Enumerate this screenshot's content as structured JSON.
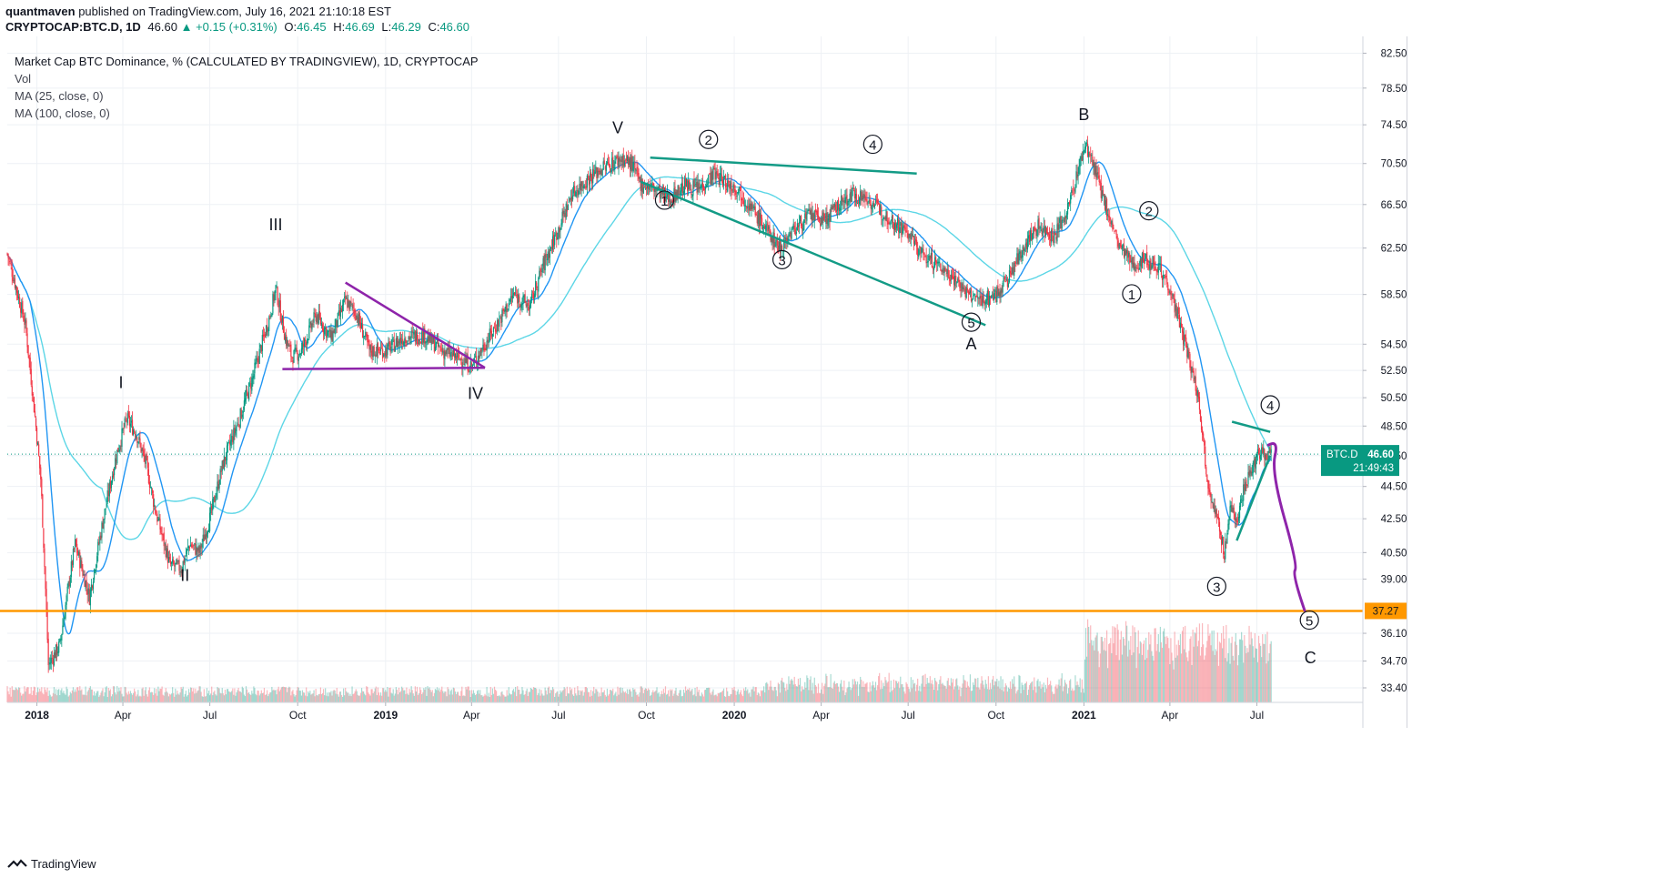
{
  "header": {
    "author": "quantmaven",
    "published_text": "published on TradingView.com, July 16, 2021 21:10:18 EST",
    "symbol": "CRYPTOCAP:BTC.D, 1D",
    "last": "46.60",
    "change": "+0.15 (+0.31%)",
    "open_label": "O:",
    "open": "46.45",
    "high_label": "H:",
    "high": "46.69",
    "low_label": "L:",
    "low": "46.29",
    "close_label": "C:",
    "close": "46.60"
  },
  "legend": {
    "title": "Market Cap BTC Dominance, % (CALCULATED BY TRADINGVIEW), 1D, CRYPTOCAP",
    "vol": "Vol",
    "ma25": "MA (25, close, 0)",
    "ma100": "MA (100, close, 0)"
  },
  "footer": {
    "brand": "TradingView"
  },
  "colors": {
    "up": "#089981",
    "down": "#f23645",
    "ma25": "#2196f3",
    "ma100": "#5cd6e6",
    "support": "#ff9800",
    "purple": "#8e24aa",
    "channel": "#139b86",
    "grid": "#eef1f5"
  },
  "chart_data": {
    "type": "line",
    "y_scale": "log",
    "ylim": [
      32.8,
      84.5
    ],
    "xlim": [
      "2017-12-01",
      "2021-10-20"
    ],
    "y_ticks": [
      "82.50",
      "78.50",
      "74.50",
      "70.50",
      "66.50",
      "62.50",
      "58.50",
      "54.50",
      "52.50",
      "50.50",
      "48.50",
      "46.50",
      "44.50",
      "42.50",
      "40.50",
      "39.00",
      "37.27",
      "36.10",
      "34.70",
      "33.40"
    ],
    "x_ticks": [
      {
        "label": "2018",
        "date": "2018-01-01",
        "bold": true
      },
      {
        "label": "Apr",
        "date": "2018-04-01"
      },
      {
        "label": "Jul",
        "date": "2018-07-01"
      },
      {
        "label": "Oct",
        "date": "2018-10-01"
      },
      {
        "label": "2019",
        "date": "2019-01-01",
        "bold": true
      },
      {
        "label": "Apr",
        "date": "2019-04-01"
      },
      {
        "label": "Jul",
        "date": "2019-07-01"
      },
      {
        "label": "Oct",
        "date": "2019-10-01"
      },
      {
        "label": "2020",
        "date": "2020-01-01",
        "bold": true
      },
      {
        "label": "Apr",
        "date": "2020-04-01"
      },
      {
        "label": "Jul",
        "date": "2020-07-01"
      },
      {
        "label": "Oct",
        "date": "2020-10-01"
      },
      {
        "label": "2021",
        "date": "2021-01-01",
        "bold": true
      },
      {
        "label": "Apr",
        "date": "2021-04-01"
      },
      {
        "label": "Jul",
        "date": "2021-07-01"
      }
    ],
    "price_path": [
      [
        "2017-12-01",
        62.0
      ],
      [
        "2017-12-20",
        56.0
      ],
      [
        "2018-01-05",
        45.0
      ],
      [
        "2018-01-13",
        34.5
      ],
      [
        "2018-01-25",
        35.5
      ],
      [
        "2018-02-10",
        41.0
      ],
      [
        "2018-02-25",
        38.0
      ],
      [
        "2018-03-10",
        42.0
      ],
      [
        "2018-03-25",
        46.5
      ],
      [
        "2018-04-05",
        49.0
      ],
      [
        "2018-04-15",
        48.0
      ],
      [
        "2018-04-25",
        46.0
      ],
      [
        "2018-05-05",
        43.0
      ],
      [
        "2018-05-20",
        39.8
      ],
      [
        "2018-06-01",
        39.6
      ],
      [
        "2018-06-10",
        41.0
      ],
      [
        "2018-06-20",
        40.5
      ],
      [
        "2018-07-01",
        42.5
      ],
      [
        "2018-07-15",
        46.0
      ],
      [
        "2018-08-01",
        49.0
      ],
      [
        "2018-08-15",
        52.0
      ],
      [
        "2018-09-01",
        56.5
      ],
      [
        "2018-09-08",
        59.0
      ],
      [
        "2018-09-18",
        55.0
      ],
      [
        "2018-09-25",
        53.5
      ],
      [
        "2018-10-05",
        54.0
      ],
      [
        "2018-10-20",
        56.8
      ],
      [
        "2018-11-05",
        55.0
      ],
      [
        "2018-11-20",
        58.0
      ],
      [
        "2018-12-01",
        57.0
      ],
      [
        "2018-12-15",
        54.0
      ],
      [
        "2019-01-01",
        54.0
      ],
      [
        "2019-01-20",
        55.0
      ],
      [
        "2019-02-10",
        55.2
      ],
      [
        "2019-03-01",
        54.0
      ],
      [
        "2019-03-25",
        53.2
      ],
      [
        "2019-04-01",
        52.8
      ],
      [
        "2019-04-15",
        54.5
      ],
      [
        "2019-05-01",
        56.5
      ],
      [
        "2019-05-15",
        58.5
      ],
      [
        "2019-06-01",
        57.5
      ],
      [
        "2019-06-15",
        61.0
      ],
      [
        "2019-06-30",
        64.0
      ],
      [
        "2019-07-15",
        67.5
      ],
      [
        "2019-08-01",
        69.0
      ],
      [
        "2019-08-15",
        70.0
      ],
      [
        "2019-09-05",
        71.0
      ],
      [
        "2019-09-15",
        70.5
      ],
      [
        "2019-09-25",
        68.5
      ],
      [
        "2019-10-10",
        68.0
      ],
      [
        "2019-10-25",
        67.0
      ],
      [
        "2019-11-10",
        68.3
      ],
      [
        "2019-11-25",
        68.0
      ],
      [
        "2019-12-10",
        69.5
      ],
      [
        "2019-12-25",
        68.5
      ],
      [
        "2020-01-05",
        68.0
      ],
      [
        "2020-01-20",
        66.0
      ],
      [
        "2020-02-01",
        64.5
      ],
      [
        "2020-02-18",
        62.5
      ],
      [
        "2020-03-01",
        64.0
      ],
      [
        "2020-03-20",
        65.5
      ],
      [
        "2020-04-05",
        65.0
      ],
      [
        "2020-04-20",
        66.5
      ],
      [
        "2020-05-05",
        67.5
      ],
      [
        "2020-05-20",
        67.0
      ],
      [
        "2020-06-01",
        66.0
      ],
      [
        "2020-06-15",
        65.0
      ],
      [
        "2020-07-01",
        63.8
      ],
      [
        "2020-07-15",
        62.0
      ],
      [
        "2020-08-01",
        61.0
      ],
      [
        "2020-08-20",
        59.8
      ],
      [
        "2020-09-01",
        58.5
      ],
      [
        "2020-09-15",
        58.0
      ],
      [
        "2020-10-01",
        58.5
      ],
      [
        "2020-10-15",
        60.0
      ],
      [
        "2020-11-01",
        63.0
      ],
      [
        "2020-11-15",
        64.5
      ],
      [
        "2020-12-01",
        63.5
      ],
      [
        "2020-12-15",
        66.0
      ],
      [
        "2020-12-28",
        70.5
      ],
      [
        "2021-01-03",
        72.5
      ],
      [
        "2021-01-15",
        69.0
      ],
      [
        "2021-01-25",
        66.0
      ],
      [
        "2021-02-05",
        63.0
      ],
      [
        "2021-02-20",
        61.0
      ],
      [
        "2021-03-05",
        61.5
      ],
      [
        "2021-03-20",
        61.0
      ],
      [
        "2021-04-01",
        59.0
      ],
      [
        "2021-04-15",
        55.0
      ],
      [
        "2021-05-01",
        50.5
      ],
      [
        "2021-05-10",
        45.0
      ],
      [
        "2021-05-20",
        42.5
      ],
      [
        "2021-05-28",
        40.5
      ],
      [
        "2021-06-03",
        43.0
      ],
      [
        "2021-06-10",
        42.5
      ],
      [
        "2021-06-18",
        44.5
      ],
      [
        "2021-06-28",
        46.0
      ],
      [
        "2021-07-05",
        46.8
      ],
      [
        "2021-07-16",
        46.6
      ]
    ],
    "last_price": {
      "label": "BTC.D",
      "value": "46.60",
      "countdown": "21:49:43",
      "price": 46.6
    },
    "support": {
      "value": 37.27,
      "label": "37.27"
    },
    "annotations": {
      "wave_labels": [
        {
          "text": "I",
          "date": "2018-03-30",
          "price": 51.2
        },
        {
          "text": "II",
          "date": "2018-06-05",
          "price": 38.9
        },
        {
          "text": "III",
          "date": "2018-09-08",
          "price": 64.1
        },
        {
          "text": "IV",
          "date": "2019-04-05",
          "price": 50.4
        },
        {
          "text": "V",
          "date": "2019-09-01",
          "price": 73.6
        },
        {
          "text": "A",
          "date": "2020-09-05",
          "price": 54.1
        },
        {
          "text": "B",
          "date": "2021-01-01",
          "price": 75.0
        },
        {
          "text": "C",
          "date": "2021-08-26",
          "price": 34.6
        }
      ],
      "circled": [
        {
          "text": "1",
          "date": "2019-10-20",
          "price": 66.4
        },
        {
          "text": "2",
          "date": "2019-12-05",
          "price": 72.4
        },
        {
          "text": "3",
          "date": "2020-02-20",
          "price": 61.0
        },
        {
          "text": "4",
          "date": "2020-05-25",
          "price": 71.9
        },
        {
          "text": "5",
          "date": "2020-09-05",
          "price": 55.8
        },
        {
          "text": "1",
          "date": "2021-02-20",
          "price": 58.1
        },
        {
          "text": "2",
          "date": "2021-03-10",
          "price": 65.4
        },
        {
          "text": "3",
          "date": "2021-05-20",
          "price": 38.3
        },
        {
          "text": "4",
          "date": "2021-07-15",
          "price": 49.6
        },
        {
          "text": "5",
          "date": "2021-08-25",
          "price": 36.5
        }
      ],
      "triangle_2019": [
        [
          "2018-11-20",
          59.5
        ],
        [
          "2019-04-15",
          52.7
        ],
        [
          "2018-09-15",
          52.6
        ]
      ],
      "channel_upper": [
        [
          "2019-10-05",
          71.1
        ],
        [
          "2020-07-10",
          69.5
        ]
      ],
      "channel_lower": [
        [
          "2019-09-25",
          68.7
        ],
        [
          "2020-09-20",
          56.0
        ]
      ],
      "triangle_2021": [
        [
          "2021-06-05",
          48.8
        ],
        [
          "2021-07-15",
          48.1
        ],
        [
          "2021-06-10",
          41.2
        ],
        [
          "2021-07-15",
          46.5
        ]
      ],
      "projection": [
        [
          "2021-07-13",
          47.2
        ],
        [
          "2021-07-20",
          46.5
        ],
        [
          "2021-07-30",
          42.5
        ],
        [
          "2021-08-10",
          39.5
        ],
        [
          "2021-08-20",
          37.3
        ]
      ]
    }
  }
}
